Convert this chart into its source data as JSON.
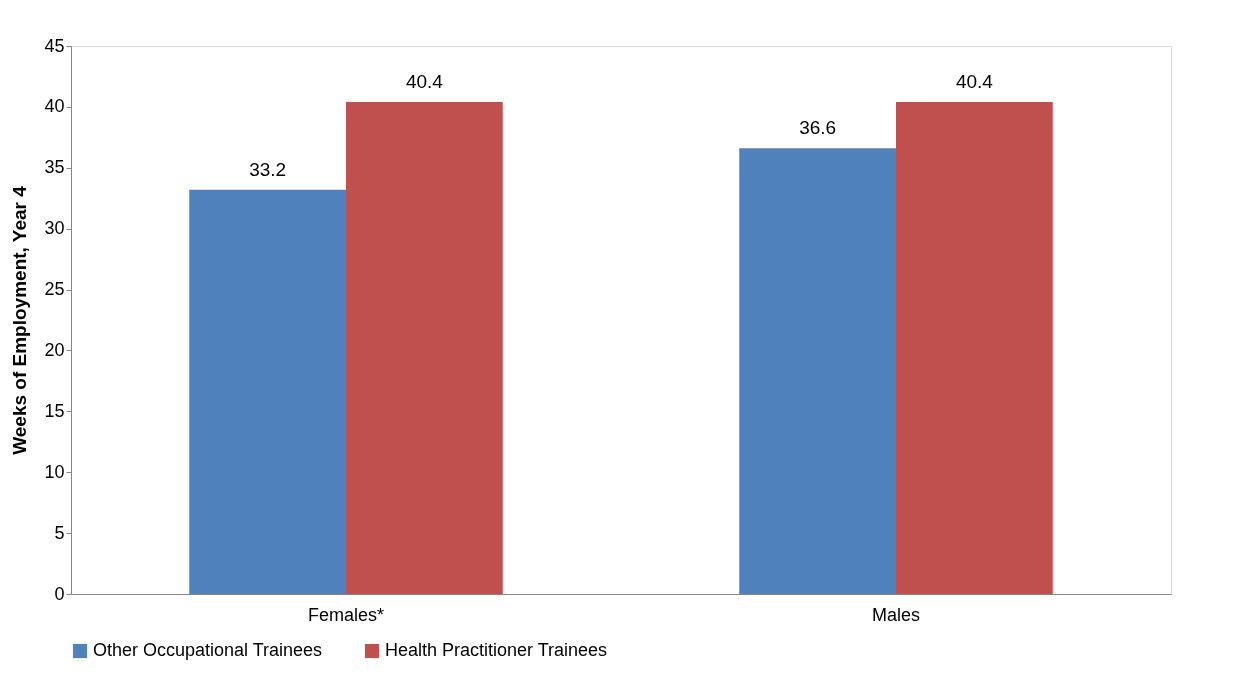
{
  "chart_data": {
    "type": "bar",
    "ylabel": "Weeks of Employment, Year 4",
    "categories": [
      "Females*",
      "Males"
    ],
    "series": [
      {
        "name": "Other Occupational Trainees",
        "color": "#4f81bd",
        "values": [
          33.2,
          36.6
        ]
      },
      {
        "name": "Health Practitioner Trainees",
        "color": "#c0504d",
        "values": [
          40.4,
          40.4
        ]
      }
    ],
    "ylim": [
      0,
      45
    ],
    "yticks": [
      0,
      5,
      10,
      15,
      20,
      25,
      30,
      35,
      40,
      45
    ],
    "data_labels": true,
    "grid": false,
    "legend": "bottom"
  }
}
